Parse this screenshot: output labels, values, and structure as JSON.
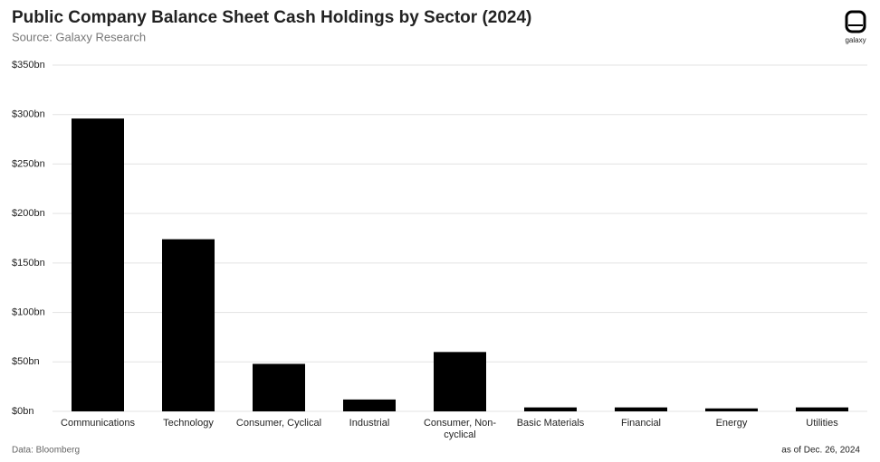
{
  "chart_data": {
    "type": "bar",
    "title": "Public Company Balance Sheet Cash Holdings by Sector (2024)",
    "subtitle": "Source: Galaxy Research",
    "source": "Data: Bloomberg",
    "date_note": "as of Dec. 26, 2024",
    "logo": "galaxy",
    "categories": [
      "Communications",
      "Technology",
      "Consumer, Cyclical",
      "Industrial",
      "Consumer, Non-cyclical",
      "Basic Materials",
      "Financial",
      "Energy",
      "Utilities"
    ],
    "values": [
      296,
      174,
      48,
      12,
      60,
      4,
      4,
      3,
      4
    ],
    "color": "#000000",
    "ylim": [
      0,
      350
    ],
    "yticks": [
      {
        "value": 0,
        "label": "$0bn"
      },
      {
        "value": 50,
        "label": "$50bn"
      },
      {
        "value": 100,
        "label": "$100bn"
      },
      {
        "value": 150,
        "label": "$150bn"
      },
      {
        "value": 200,
        "label": "$200bn"
      },
      {
        "value": 250,
        "label": "$250bn"
      },
      {
        "value": 300,
        "label": "$300bn"
      },
      {
        "value": 350,
        "label": "$350bn"
      }
    ],
    "grid": true
  }
}
